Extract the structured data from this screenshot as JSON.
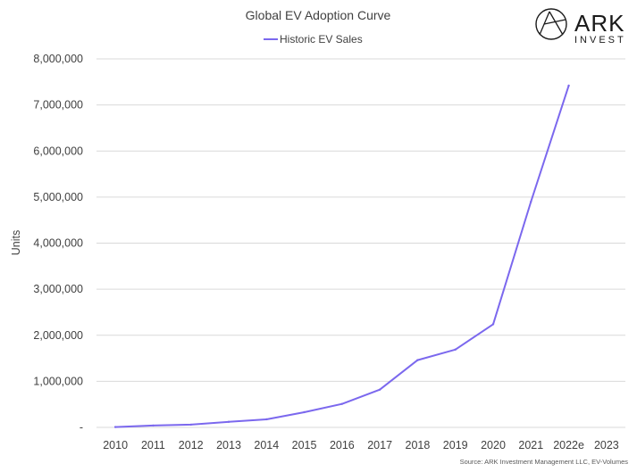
{
  "brand": {
    "name": "ARK",
    "subtitle": "INVEST"
  },
  "source_note": "Source: ARK Investment Management LLC, EV-Volumes",
  "colors": {
    "series": "#7b68ee",
    "grid": "#d9d9d9",
    "text": "#404040"
  },
  "chart_data": {
    "type": "line",
    "title": "Global EV Adoption Curve",
    "xlabel": "",
    "ylabel": "Units",
    "categories": [
      "2010",
      "2011",
      "2012",
      "2013",
      "2014",
      "2015",
      "2016",
      "2017",
      "2018",
      "2019",
      "2020",
      "2021",
      "2022e",
      "2023"
    ],
    "ylim": [
      0,
      8000000
    ],
    "yticks": [
      0,
      1000000,
      2000000,
      3000000,
      4000000,
      5000000,
      6000000,
      7000000,
      8000000
    ],
    "ytick_labels": [
      "-",
      "1,000,000",
      "2,000,000",
      "3,000,000",
      "4,000,000",
      "5,000,000",
      "6,000,000",
      "7,000,000",
      "8,000,000"
    ],
    "grid": true,
    "legend": "top-center",
    "series": [
      {
        "name": "Historic EV Sales",
        "values": [
          8000,
          40000,
          60000,
          120000,
          175000,
          330000,
          510000,
          820000,
          1460000,
          1690000,
          2240000,
          4900000,
          7420000,
          null
        ]
      }
    ]
  }
}
